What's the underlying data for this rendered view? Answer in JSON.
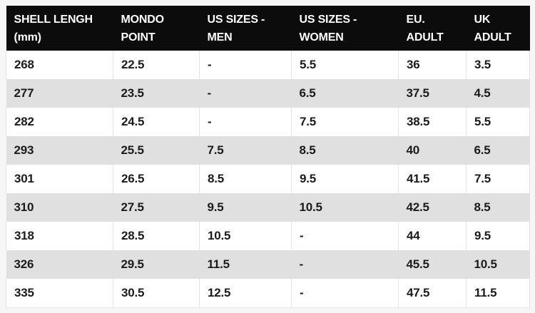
{
  "colors": {
    "page_bg": "#f6f6f6",
    "header_bg": "#0c0c0c",
    "header_text": "#ffffff",
    "row_bg": "#ffffff",
    "row_alt_bg": "#e0e0e0",
    "body_text": "#1b1b1b",
    "divider": "#e4e4e4"
  },
  "table": {
    "columns": [
      {
        "id": "shell-length",
        "line1": "SHELL LENGH",
        "line2": "(mm)"
      },
      {
        "id": "mondo-point",
        "line1": "MONDO",
        "line2": "POINT"
      },
      {
        "id": "us-sizes-men",
        "line1": "US SIZES -",
        "line2": "MEN"
      },
      {
        "id": "us-sizes-women",
        "line1": "US SIZES -",
        "line2": "WOMEN"
      },
      {
        "id": "eu-adult",
        "line1": "EU.",
        "line2": "ADULT"
      },
      {
        "id": "uk-adult",
        "line1": "UK",
        "line2": "ADULT"
      }
    ],
    "rows": [
      [
        "268",
        "22.5",
        "-",
        "5.5",
        "36",
        "3.5"
      ],
      [
        "277",
        "23.5",
        "-",
        "6.5",
        "37.5",
        "4.5"
      ],
      [
        "282",
        "24.5",
        "-",
        "7.5",
        "38.5",
        "5.5"
      ],
      [
        "293",
        "25.5",
        "7.5",
        "8.5",
        "40",
        "6.5"
      ],
      [
        "301",
        "26.5",
        "8.5",
        "9.5",
        "41.5",
        "7.5"
      ],
      [
        "310",
        "27.5",
        "9.5",
        "10.5",
        "42.5",
        "8.5"
      ],
      [
        "318",
        "28.5",
        "10.5",
        "-",
        "44",
        "9.5"
      ],
      [
        "326",
        "29.5",
        "11.5",
        "-",
        "45.5",
        "10.5"
      ],
      [
        "335",
        "30.5",
        "12.5",
        "-",
        "47.5",
        "11.5"
      ]
    ]
  }
}
